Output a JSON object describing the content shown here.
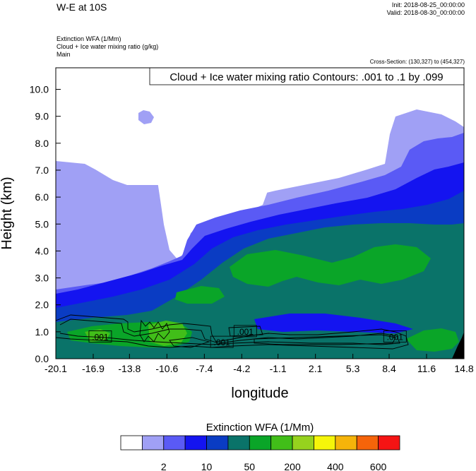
{
  "header": {
    "title": "W-E at 10S",
    "init": "Init: 2018-08-25_00:00:00",
    "valid": "Valid: 2018-08-30_00:00:00",
    "info_lines": [
      "Extinction WFA   (1/Mm)",
      "Cloud + Ice water mixing ratio   (g/kg)",
      "Main"
    ],
    "cross_section": "Cross-Section: (130,327) to (454,327)"
  },
  "chart_data": {
    "type": "heatmap",
    "contour_label": "Cloud + Ice water mixing ratio Contours: .001 to .1 by .099",
    "xlabel": "longitude",
    "ylabel": "Height (km)",
    "xlim": [
      -20.1,
      14.8
    ],
    "ylim": [
      0,
      10.8
    ],
    "x_ticks": [
      "-20.1",
      "-16.9",
      "-13.8",
      "-10.6",
      "-7.4",
      "-4.2",
      "-1.1",
      "2.1",
      "5.3",
      "8.4",
      "11.6",
      "14.8"
    ],
    "y_ticks": [
      "0.0",
      "1.0",
      "2.0",
      "3.0",
      "4.0",
      "5.0",
      "6.0",
      "7.0",
      "8.0",
      "9.0",
      "10.0"
    ],
    "contour_value_labels": [
      {
        "text": ".001",
        "x": -16.3,
        "y": 0.8
      },
      {
        "text": ".001",
        "x": -5.9,
        "y": 0.6
      },
      {
        "text": ".001",
        "x": -3.9,
        "y": 1.0
      },
      {
        "text": ".001",
        "x": 8.9,
        "y": 0.8
      }
    ],
    "colorbar": {
      "title": "Extinction WFA  (1/Mm)",
      "colors": [
        "#ffffff",
        "#a0a0f5",
        "#5a5af5",
        "#1414f0",
        "#0a3cc3",
        "#0a7369",
        "#0aa528",
        "#41be19",
        "#96d21e",
        "#f5f50a",
        "#f5b40a",
        "#f5640a",
        "#f51414"
      ],
      "tick_labels": [
        {
          "label": "2",
          "after_index": 1
        },
        {
          "label": "10",
          "after_index": 3
        },
        {
          "label": "50",
          "after_index": 5
        },
        {
          "label": "200",
          "after_index": 7
        },
        {
          "label": "400",
          "after_index": 9
        },
        {
          "label": "600",
          "after_index": 11
        }
      ]
    }
  }
}
